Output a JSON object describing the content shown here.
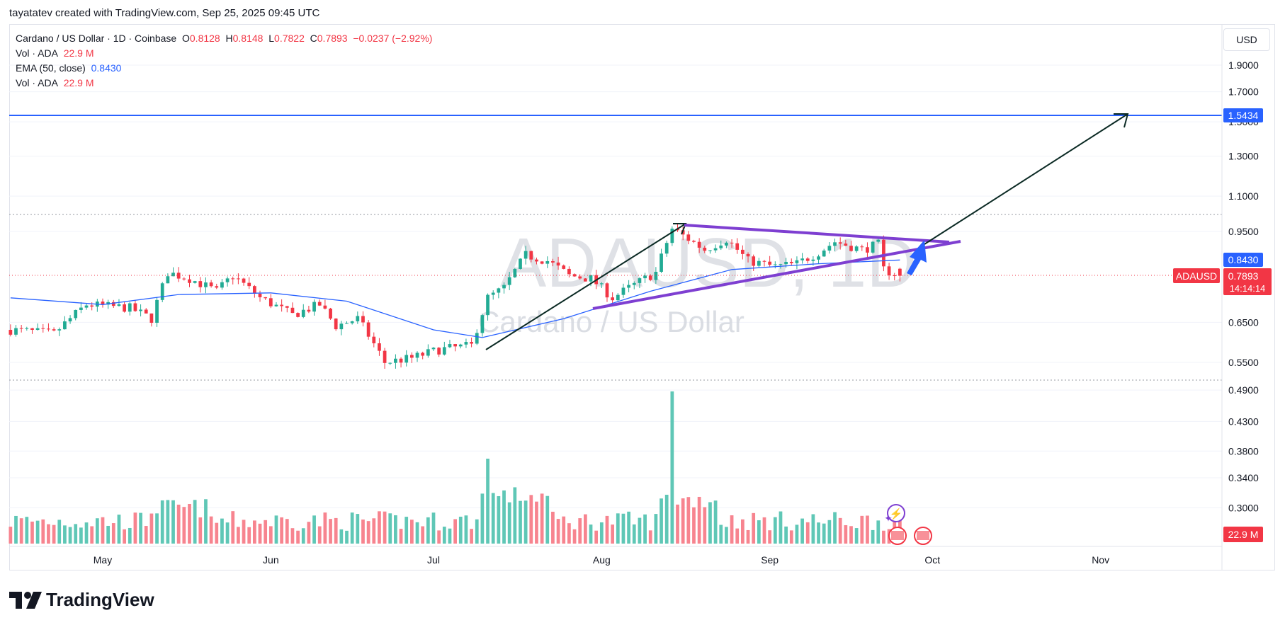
{
  "header": {
    "attribution": "tayatatev created with TradingView.com, Sep 25, 2025 09:45 UTC"
  },
  "legend": {
    "symbol_line": "Cardano / US Dollar · 1D · Coinbase",
    "o_label": "O",
    "o_value": "0.8128",
    "h_label": "H",
    "h_value": "0.8148",
    "l_label": "L",
    "l_value": "0.7822",
    "c_label": "C",
    "c_value": "0.7893",
    "change": "−0.0237 (−2.92%)",
    "vol_label": "Vol · ADA",
    "vol_value": "22.9 M",
    "ema_label": "EMA (50, close)",
    "ema_value": "0.8430",
    "vol2_label": "Vol · ADA",
    "vol2_value": "22.9 M"
  },
  "currency_button": "USD",
  "watermark": {
    "ticker": "ADAUSD, 1D",
    "name": "Cardano / US Dollar"
  },
  "price_axis": {
    "ticks": [
      "1.9000",
      "1.7000",
      "1.5000",
      "1.3000",
      "1.1000",
      "0.9500",
      "0.6500",
      "0.5500",
      "0.4900",
      "0.4300",
      "0.3800",
      "0.3400",
      "0.3000"
    ],
    "labels": {
      "target": "1.5434",
      "ema": "0.8430",
      "symbol": "ADAUSD",
      "last": "0.7893",
      "countdown": "14:14:14",
      "volume": "22.9 M"
    }
  },
  "time_axis": [
    "May",
    "Jun",
    "Jul",
    "Aug",
    "Sep",
    "Oct",
    "Nov"
  ],
  "brand": "TradingView",
  "colors": {
    "up": "#22ab94",
    "down": "#f23645",
    "ema": "#2962ff",
    "triangle": "#7e3fd1",
    "target": "#2962ff",
    "arrow": "#0b2a24"
  },
  "chart_data": {
    "type": "candlestick",
    "title": "Cardano / US Dollar · 1D · Coinbase",
    "ylim": [
      0.28,
      2.05
    ],
    "scale": "log",
    "x_range": [
      "2025-04-14",
      "2025-11-20"
    ],
    "target_level": 1.5434,
    "last_close": 0.7893,
    "ema50_last": 0.843,
    "ohlc": [],
    "ema": [
      [
        "2025-04-14",
        0.72
      ],
      [
        "2025-05-01",
        0.7
      ],
      [
        "2025-05-15",
        0.73
      ],
      [
        "2025-06-01",
        0.735
      ],
      [
        "2025-06-15",
        0.71
      ],
      [
        "2025-07-01",
        0.63
      ],
      [
        "2025-07-10",
        0.61
      ],
      [
        "2025-07-25",
        0.66
      ],
      [
        "2025-08-10",
        0.74
      ],
      [
        "2025-08-25",
        0.81
      ],
      [
        "2025-09-10",
        0.83
      ],
      [
        "2025-09-25",
        0.843
      ]
    ],
    "volume_last": "22.9 M"
  }
}
